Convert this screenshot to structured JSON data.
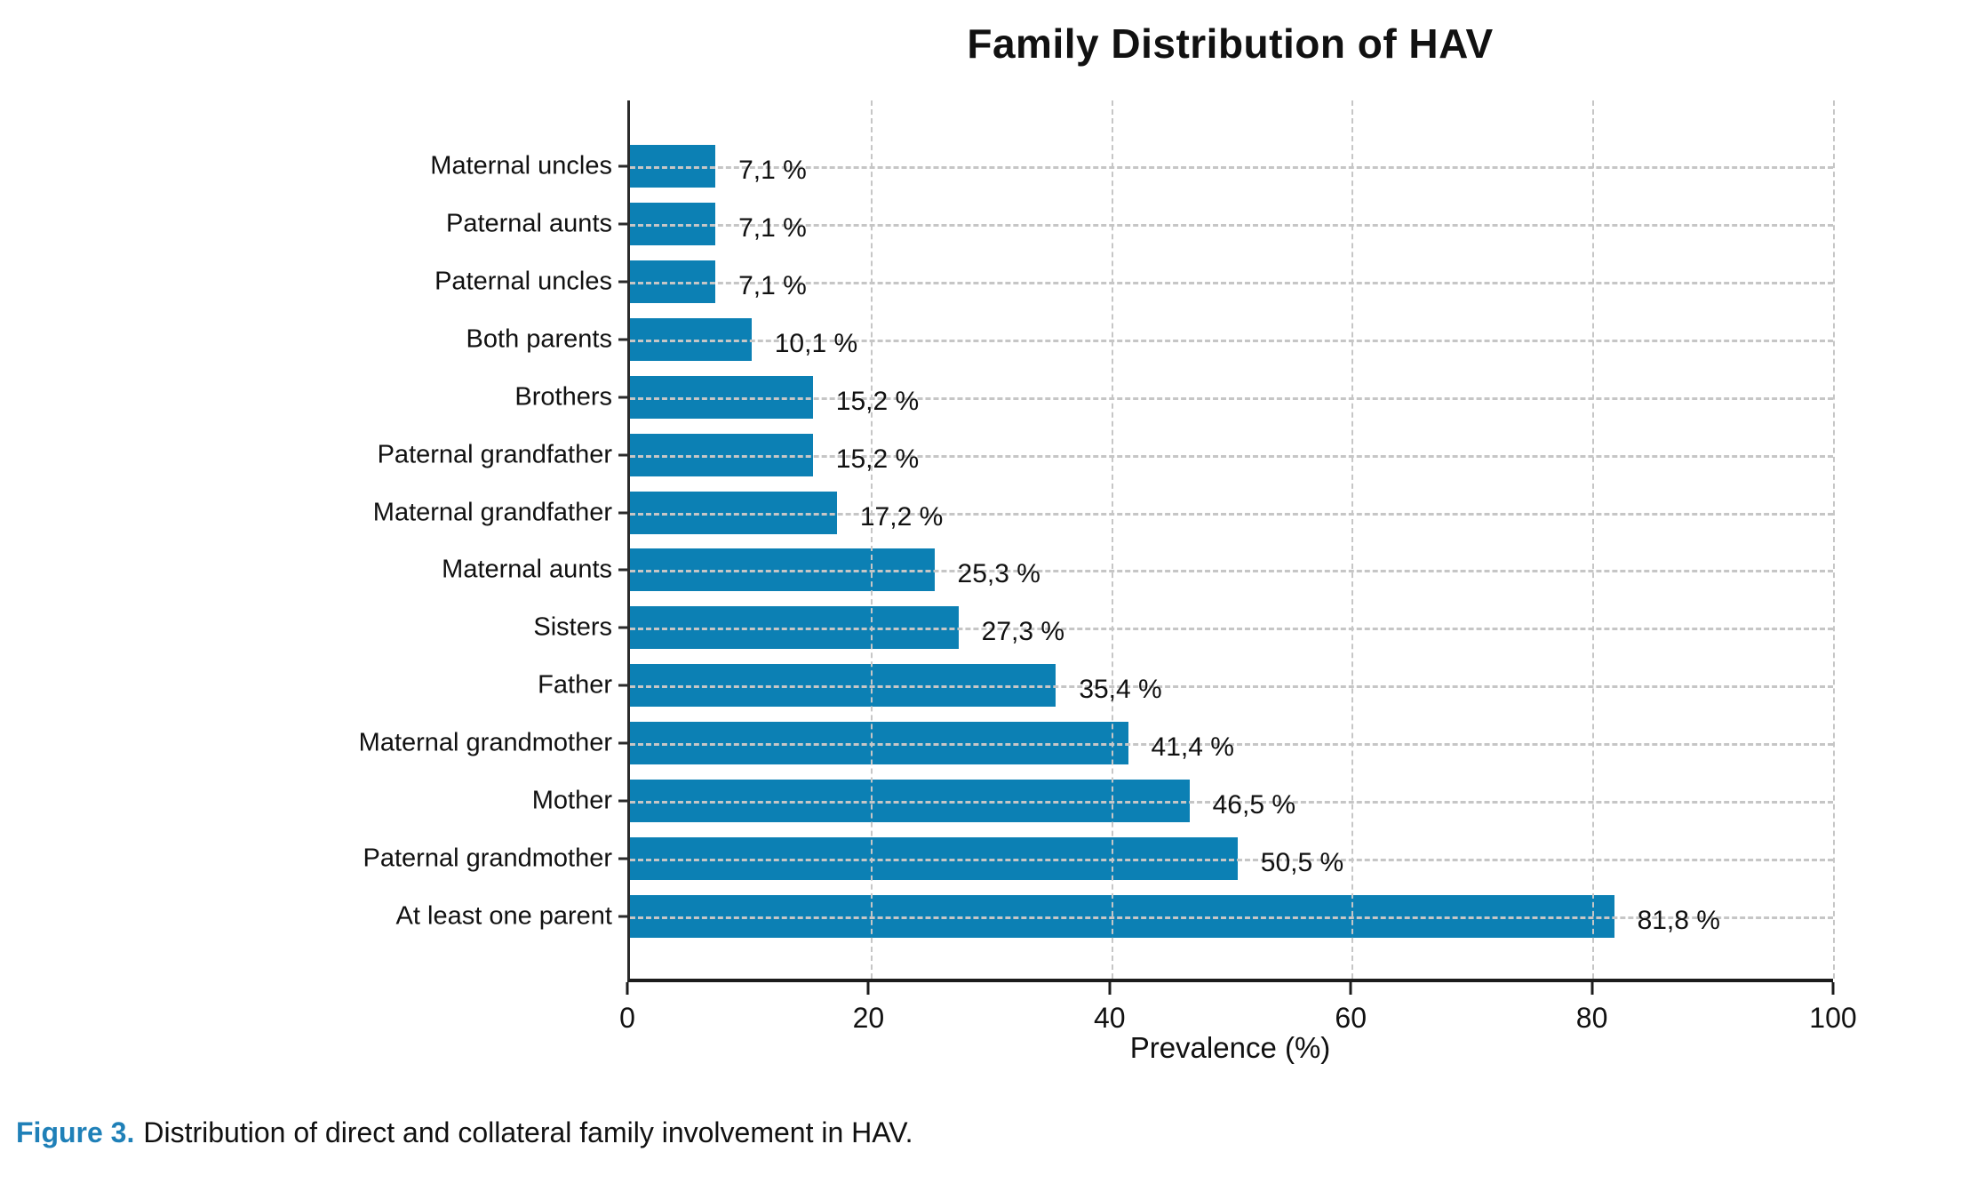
{
  "page": {
    "background": "#ffffff"
  },
  "chart_data": {
    "type": "bar",
    "orientation": "horizontal",
    "title": "Family Distribution of HAV",
    "xlabel": "Prevalence (%)",
    "xlim": [
      0,
      100
    ],
    "x_ticks": [
      0,
      20,
      40,
      60,
      80,
      100
    ],
    "grid": "dashed gray gridlines, horizontal per category and vertical per x tick, drawn over bars",
    "legend": "none",
    "bar_color": "#0c80b4",
    "categories": [
      "Maternal uncles",
      "Paternal aunts",
      "Paternal uncles",
      "Both parents",
      "Brothers",
      "Paternal grandfather",
      "Maternal grandfather",
      "Maternal aunts",
      "Sisters",
      "Father",
      "Maternal grandmother",
      "Mother",
      "Paternal grandmother",
      "At least one parent"
    ],
    "values": [
      7.1,
      7.1,
      7.1,
      10.1,
      15.2,
      15.2,
      17.2,
      25.3,
      27.3,
      35.4,
      41.4,
      46.5,
      50.5,
      81.8
    ],
    "value_labels": [
      "7,1 %",
      "7,1 %",
      "7,1 %",
      "10,1 %",
      "15,2 %",
      "15,2 %",
      "17,2 %",
      "25,3 %",
      "27,3 %",
      "35,4 %",
      "41,4 %",
      "46,5 %",
      "50,5 %",
      "81,8 %"
    ]
  },
  "caption": {
    "prefix": "Figure 3.",
    "text": "Distribution of direct and collateral family involvement in HAV.",
    "accent_color": "#1f80b8"
  }
}
